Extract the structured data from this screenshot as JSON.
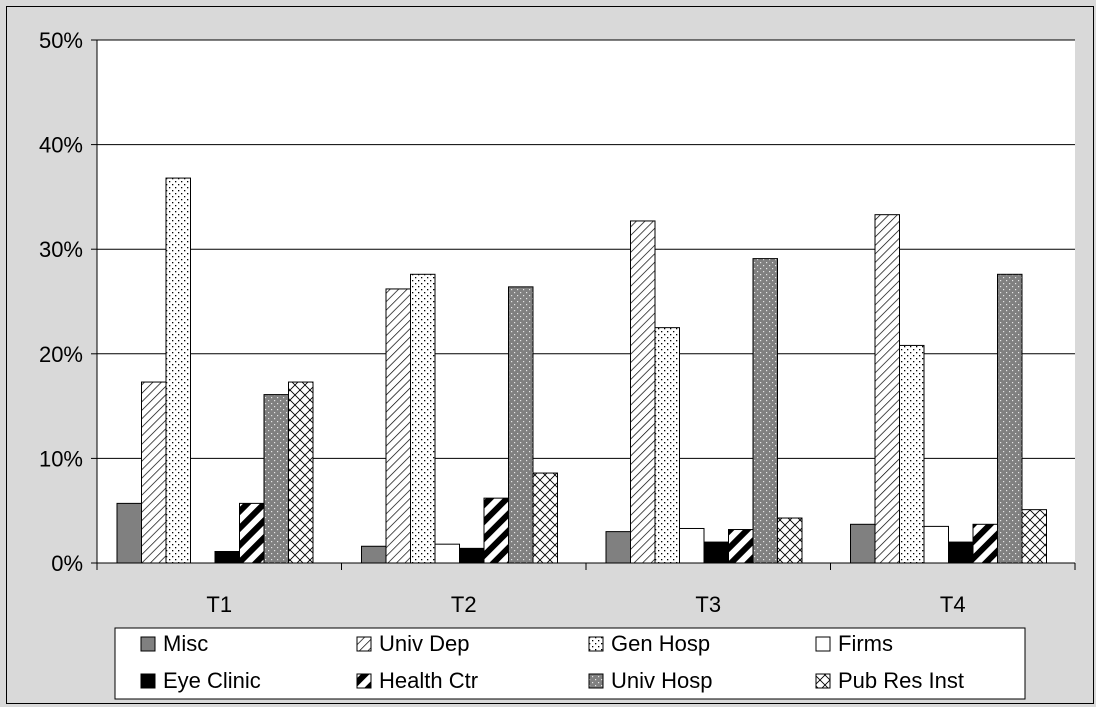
{
  "chart_data": {
    "type": "bar",
    "categories": [
      "T1",
      "T2",
      "T3",
      "T4"
    ],
    "ylim": [
      0,
      50
    ],
    "y_tick_labels": [
      "0%",
      "10%",
      "20%",
      "30%",
      "40%",
      "50%"
    ],
    "y_ticks": [
      0,
      10,
      20,
      30,
      40,
      50
    ],
    "grid": true,
    "legend_position": "bottom",
    "series": [
      {
        "name": "Misc",
        "values": [
          5.7,
          1.6,
          3.0,
          3.7
        ],
        "color": "#808080",
        "pattern": "solid-gray"
      },
      {
        "name": "Univ Dep",
        "values": [
          17.3,
          26.2,
          32.7,
          33.3
        ],
        "color": "#ffffff",
        "pattern": "diagonal-hatch"
      },
      {
        "name": "Gen Hosp",
        "values": [
          36.8,
          27.6,
          22.5,
          20.8
        ],
        "color": "#ffffff",
        "pattern": "dots"
      },
      {
        "name": "Firms",
        "values": [
          0,
          1.8,
          3.3,
          3.5
        ],
        "color": "#ffffff",
        "pattern": "solid-white"
      },
      {
        "name": "Eye Clinic",
        "values": [
          1.1,
          1.4,
          2.0,
          2.0
        ],
        "color": "#000000",
        "pattern": "solid-black"
      },
      {
        "name": "Health Ctr",
        "values": [
          5.7,
          6.2,
          3.2,
          3.7
        ],
        "color": "#000000",
        "pattern": "wide-diagonal"
      },
      {
        "name": "Univ Hosp",
        "values": [
          16.1,
          26.4,
          29.1,
          27.6
        ],
        "color": "#808080",
        "pattern": "gray-dots"
      },
      {
        "name": "Pub Res Inst",
        "values": [
          17.3,
          8.6,
          4.3,
          5.1
        ],
        "color": "#ffffff",
        "pattern": "crosshatch"
      }
    ]
  }
}
